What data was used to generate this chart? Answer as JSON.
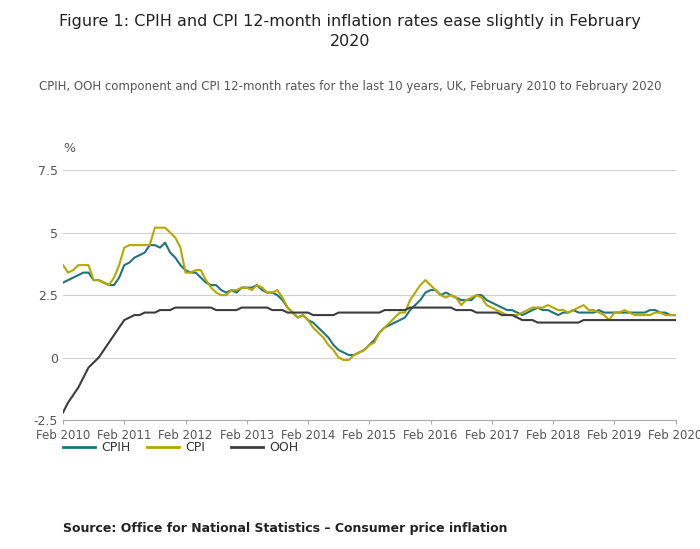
{
  "title": "Figure 1: CPIH and CPI 12-month inflation rates ease slightly in February\n2020",
  "subtitle": "CPIH, OOH component and CPI 12-month rates for the last 10 years, UK, February 2010 to February 2020",
  "source": "Source: Office for National Statistics – Consumer price inflation",
  "ylabel": "%",
  "ylim": [
    -2.5,
    7.5
  ],
  "yticks": [
    -2.5,
    0,
    2.5,
    5,
    7.5
  ],
  "bg_color": "#ffffff",
  "grid_color": "#d0d0d0",
  "cpih_color": "#22737b",
  "cpi_color": "#b5a800",
  "ooh_color": "#3d3d3d",
  "legend_labels": [
    "CPIH",
    "CPI",
    "OOH"
  ],
  "x_labels": [
    "Feb 2010",
    "Feb 2011",
    "Feb 2012",
    "Feb 2013",
    "Feb 2014",
    "Feb 2015",
    "Feb 2016",
    "Feb 2017",
    "Feb 2018",
    "Feb 2019",
    "Feb 2020"
  ],
  "months": 121,
  "cpih_monthly": [
    3.0,
    3.1,
    3.2,
    3.3,
    3.4,
    3.4,
    3.1,
    3.1,
    3.0,
    2.9,
    2.9,
    3.2,
    3.7,
    3.8,
    4.0,
    4.1,
    4.2,
    4.5,
    4.5,
    4.4,
    4.6,
    4.2,
    4.0,
    3.7,
    3.5,
    3.4,
    3.4,
    3.2,
    3.0,
    2.9,
    2.9,
    2.7,
    2.6,
    2.7,
    2.6,
    2.8,
    2.8,
    2.8,
    2.9,
    2.7,
    2.6,
    2.6,
    2.5,
    2.3,
    2.0,
    1.8,
    1.6,
    1.7,
    1.5,
    1.4,
    1.2,
    1.0,
    0.8,
    0.5,
    0.3,
    0.2,
    0.1,
    0.1,
    0.2,
    0.3,
    0.5,
    0.7,
    1.0,
    1.2,
    1.3,
    1.4,
    1.5,
    1.6,
    1.9,
    2.1,
    2.3,
    2.6,
    2.7,
    2.7,
    2.5,
    2.6,
    2.5,
    2.4,
    2.3,
    2.3,
    2.3,
    2.5,
    2.5,
    2.3,
    2.2,
    2.1,
    2.0,
    1.9,
    1.9,
    1.8,
    1.7,
    1.8,
    1.9,
    2.0,
    1.9,
    1.9,
    1.8,
    1.7,
    1.8,
    1.8,
    1.9,
    1.8,
    1.8,
    1.8,
    1.8,
    1.9,
    1.8,
    1.8,
    1.8,
    1.8,
    1.8,
    1.8,
    1.8,
    1.8,
    1.8,
    1.9,
    1.9,
    1.8,
    1.8,
    1.7,
    1.7
  ],
  "cpi_monthly": [
    3.7,
    3.4,
    3.5,
    3.7,
    3.7,
    3.7,
    3.1,
    3.1,
    3.0,
    2.9,
    3.2,
    3.7,
    4.4,
    4.5,
    4.5,
    4.5,
    4.5,
    4.5,
    5.2,
    5.2,
    5.2,
    5.0,
    4.8,
    4.4,
    3.4,
    3.4,
    3.5,
    3.5,
    3.1,
    2.8,
    2.6,
    2.5,
    2.5,
    2.7,
    2.7,
    2.8,
    2.8,
    2.7,
    2.9,
    2.8,
    2.6,
    2.6,
    2.7,
    2.4,
    2.0,
    1.8,
    1.6,
    1.7,
    1.5,
    1.2,
    1.0,
    0.8,
    0.5,
    0.3,
    0.0,
    -0.1,
    -0.1,
    0.1,
    0.2,
    0.3,
    0.5,
    0.6,
    1.0,
    1.2,
    1.4,
    1.6,
    1.8,
    1.8,
    2.3,
    2.6,
    2.9,
    3.1,
    2.9,
    2.7,
    2.5,
    2.4,
    2.5,
    2.4,
    2.1,
    2.3,
    2.4,
    2.5,
    2.4,
    2.1,
    2.0,
    1.9,
    1.8,
    1.7,
    1.7,
    1.7,
    1.8,
    1.9,
    2.0,
    2.0,
    2.0,
    2.1,
    2.0,
    1.9,
    1.9,
    1.8,
    1.9,
    2.0,
    2.1,
    1.9,
    1.9,
    1.8,
    1.7,
    1.5,
    1.8,
    1.8,
    1.9,
    1.8,
    1.7,
    1.7,
    1.7,
    1.7,
    1.8,
    1.8,
    1.7,
    1.7,
    1.7
  ],
  "ooh_monthly": [
    -2.2,
    -1.8,
    -1.5,
    -1.2,
    -0.8,
    -0.4,
    -0.2,
    0.0,
    0.3,
    0.6,
    0.9,
    1.2,
    1.5,
    1.6,
    1.7,
    1.7,
    1.8,
    1.8,
    1.8,
    1.9,
    1.9,
    1.9,
    2.0,
    2.0,
    2.0,
    2.0,
    2.0,
    2.0,
    2.0,
    2.0,
    1.9,
    1.9,
    1.9,
    1.9,
    1.9,
    2.0,
    2.0,
    2.0,
    2.0,
    2.0,
    2.0,
    1.9,
    1.9,
    1.9,
    1.8,
    1.8,
    1.8,
    1.8,
    1.8,
    1.7,
    1.7,
    1.7,
    1.7,
    1.7,
    1.8,
    1.8,
    1.8,
    1.8,
    1.8,
    1.8,
    1.8,
    1.8,
    1.8,
    1.9,
    1.9,
    1.9,
    1.9,
    1.9,
    2.0,
    2.0,
    2.0,
    2.0,
    2.0,
    2.0,
    2.0,
    2.0,
    2.0,
    1.9,
    1.9,
    1.9,
    1.9,
    1.8,
    1.8,
    1.8,
    1.8,
    1.8,
    1.7,
    1.7,
    1.7,
    1.6,
    1.5,
    1.5,
    1.5,
    1.4,
    1.4,
    1.4,
    1.4,
    1.4,
    1.4,
    1.4,
    1.4,
    1.4,
    1.5,
    1.5,
    1.5,
    1.5,
    1.5,
    1.5,
    1.5,
    1.5,
    1.5,
    1.5,
    1.5,
    1.5,
    1.5,
    1.5,
    1.5,
    1.5,
    1.5,
    1.5,
    1.5
  ]
}
